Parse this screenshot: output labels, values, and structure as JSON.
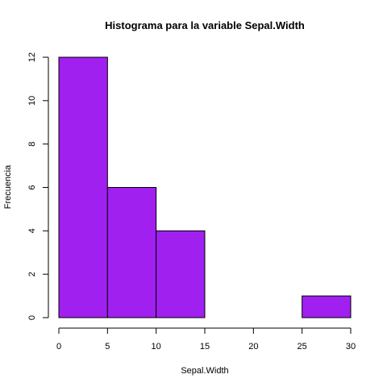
{
  "chart_data": {
    "type": "bar",
    "title": "Histograma para la variable Sepal.Width",
    "xlabel": "Sepal.Width",
    "ylabel": "Frecuencia",
    "bins": [
      {
        "start": 0,
        "end": 5,
        "value": 12
      },
      {
        "start": 5,
        "end": 10,
        "value": 6
      },
      {
        "start": 10,
        "end": 15,
        "value": 4
      },
      {
        "start": 15,
        "end": 20,
        "value": 0
      },
      {
        "start": 20,
        "end": 25,
        "value": 0
      },
      {
        "start": 25,
        "end": 30,
        "value": 1
      }
    ],
    "xlim": [
      0,
      30
    ],
    "ylim": [
      0,
      12
    ],
    "xticks": [
      0,
      5,
      10,
      15,
      20,
      25,
      30
    ],
    "yticks": [
      0,
      2,
      4,
      6,
      8,
      10,
      12
    ],
    "bar_color": "#a020f0",
    "border_color": "#000000",
    "grid": false,
    "legend": "none"
  }
}
